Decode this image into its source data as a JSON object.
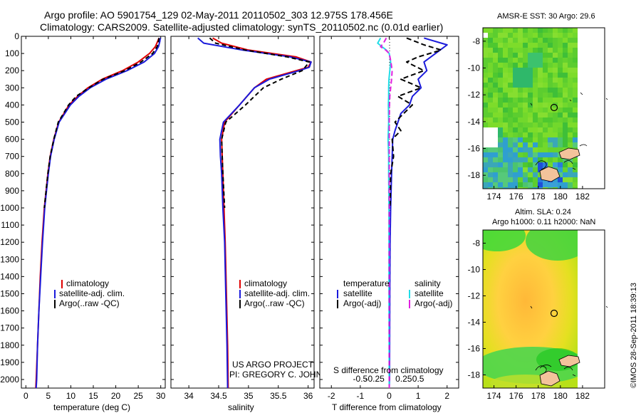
{
  "title": {
    "line1": "Argo profile: AO 5901754_129 02-May-2011 20110502_303 12.975S 178.456E",
    "line2": "Climatology: CARS2009. Satellite-adjusted climatology: synTS_20110502.nc (0.01d earlier)"
  },
  "credits": {
    "project": "US ARGO PROJECT",
    "pi": "PI: GREGORY C. JOHNSON",
    "imos": "©IMOS 28-Sep-2011 18:39:13"
  },
  "colors": {
    "climatology": "#e00000",
    "satellite": "#1a1adb",
    "argo": "#000000",
    "sat_salinity": "#22dde8",
    "argo_salinity": "#e020e0",
    "land": "#f3c39b"
  },
  "chart_data": [
    {
      "id": "temperature",
      "type": "line",
      "xlabel": "temperature (deg C)",
      "xlim": [
        -1,
        31
      ],
      "xticks": [
        0,
        5,
        10,
        15,
        20,
        25,
        30
      ],
      "ylim": [
        2050,
        0
      ],
      "yticks": [
        0,
        100,
        200,
        300,
        400,
        500,
        600,
        700,
        800,
        900,
        1000,
        1100,
        1200,
        1300,
        1400,
        1500,
        1600,
        1700,
        1800,
        1900,
        2000
      ],
      "legend": [
        "climatology",
        "satellite-adj. clim.",
        "Argo(..raw -QC)"
      ],
      "series": [
        {
          "name": "climatology",
          "color_key": "climatology",
          "dash": "",
          "depth": [
            10,
            30,
            60,
            100,
            150,
            200,
            250,
            300,
            350,
            400,
            500,
            600,
            700,
            800,
            900,
            1000,
            1200,
            1400,
            1600,
            1800,
            2000,
            2050
          ],
          "values": [
            29.6,
            29.3,
            28.8,
            27.5,
            25.0,
            21.5,
            17.0,
            13.8,
            11.5,
            9.6,
            7.3,
            6.2,
            5.4,
            4.9,
            4.5,
            4.1,
            3.6,
            3.2,
            2.9,
            2.6,
            2.3,
            2.2
          ]
        },
        {
          "name": "satellite-adj. clim.",
          "color_key": "satellite",
          "dash": "",
          "depth": [
            10,
            30,
            60,
            100,
            150,
            200,
            250,
            300,
            350,
            400,
            500,
            600,
            700,
            800,
            900,
            1000,
            1200,
            1400,
            1600,
            1800,
            2000,
            2050
          ],
          "values": [
            29.9,
            29.8,
            29.5,
            28.6,
            26.3,
            22.5,
            17.8,
            14.3,
            11.8,
            9.9,
            7.4,
            6.3,
            5.5,
            5.0,
            4.6,
            4.2,
            3.7,
            3.3,
            2.9,
            2.6,
            2.4,
            2.3
          ]
        },
        {
          "name": "Argo(..raw -QC)",
          "color_key": "argo",
          "dash": "6,4",
          "depth": [
            10,
            30,
            60,
            100,
            150,
            200,
            250,
            300,
            350,
            400,
            500,
            600,
            700,
            800,
            900,
            1000
          ],
          "values": [
            29.6,
            29.5,
            29.2,
            28.2,
            25.6,
            22.0,
            17.2,
            14.0,
            11.2,
            9.5,
            7.2,
            6.2,
            5.4,
            4.9,
            4.5,
            4.1
          ]
        }
      ]
    },
    {
      "id": "salinity",
      "type": "line",
      "xlabel": "salinity",
      "xlim": [
        33.7,
        36.1
      ],
      "xticks": [
        34,
        34.5,
        35,
        35.5,
        36
      ],
      "xticklabels": [
        "34",
        "34.5",
        "35",
        "35.5",
        "36"
      ],
      "ylim": [
        2050,
        0
      ],
      "legend": [
        "climatology",
        "satellite-adj. clim.",
        "Argo(..raw -QC)"
      ],
      "series": [
        {
          "name": "climatology",
          "color_key": "climatology",
          "dash": "",
          "depth": [
            10,
            40,
            80,
            120,
            150,
            180,
            200,
            250,
            300,
            400,
            500,
            600,
            700,
            800,
            1000,
            1200,
            1500,
            1800,
            2050
          ],
          "values": [
            34.4,
            34.55,
            35.0,
            35.8,
            36.05,
            36.0,
            35.8,
            35.3,
            35.1,
            34.85,
            34.6,
            34.55,
            34.56,
            34.57,
            34.59,
            34.61,
            34.63,
            34.65,
            34.66
          ]
        },
        {
          "name": "satellite-adj. clim.",
          "color_key": "satellite",
          "dash": "",
          "depth": [
            10,
            40,
            80,
            120,
            150,
            180,
            200,
            250,
            300,
            400,
            500,
            600,
            700,
            800,
            1000,
            1200,
            1500,
            1800,
            2050
          ],
          "values": [
            34.15,
            34.25,
            34.9,
            35.7,
            36.05,
            36.02,
            35.85,
            35.35,
            35.1,
            34.85,
            34.58,
            34.52,
            34.53,
            34.55,
            34.57,
            34.6,
            34.62,
            34.64,
            34.65
          ]
        },
        {
          "name": "Argo(..raw -QC)",
          "color_key": "argo",
          "dash": "6,4",
          "depth": [
            10,
            40,
            80,
            120,
            150,
            180,
            200,
            250,
            300,
            350,
            400,
            500,
            600,
            700,
            800,
            1000
          ],
          "values": [
            34.35,
            34.45,
            34.95,
            35.65,
            36.02,
            35.95,
            35.9,
            35.55,
            35.25,
            35.1,
            34.95,
            34.62,
            34.55,
            34.56,
            34.57,
            34.6
          ]
        }
      ]
    },
    {
      "id": "difference",
      "type": "line",
      "xlabel": "T difference from climatology",
      "xlabel2": "S difference from climatology",
      "xlim": [
        -2.4,
        2.4
      ],
      "xticks": [
        -2,
        -1,
        0,
        1,
        2
      ],
      "xticklabels": [
        "-2",
        "-1",
        "0",
        "1",
        "2"
      ],
      "sticks": [
        -0.5,
        -0.25,
        0.25,
        0.5
      ],
      "sticklabels": [
        "-0.5",
        "-0.25",
        "0.25",
        "0.5"
      ],
      "ylim": [
        2050,
        0
      ],
      "legend_temperature": [
        "temperature",
        "satellite",
        "Argo(-adj)"
      ],
      "legend_salinity": [
        "salinity",
        "satellite",
        "Argo(-adj)"
      ],
      "series": [
        {
          "name": "T satellite",
          "color_key": "satellite",
          "dash": "",
          "depth": [
            10,
            50,
            100,
            150,
            200,
            250,
            300,
            350,
            400,
            450,
            500,
            550,
            600,
            700,
            800,
            1000,
            1200,
            1500,
            2000,
            2050
          ],
          "values": [
            1.2,
            2.0,
            1.6,
            1.2,
            1.3,
            1.0,
            1.1,
            0.8,
            0.7,
            0.4,
            0.3,
            0.2,
            0.12,
            0.1,
            0.08,
            0.05,
            0.03,
            0.02,
            0.01,
            0.0
          ]
        },
        {
          "name": "T Argo(-adj)",
          "color_key": "argo",
          "dash": "7,4",
          "depth": [
            10,
            50,
            80,
            120,
            150,
            200,
            250,
            300,
            350,
            400,
            450,
            500,
            550,
            600,
            700,
            800,
            1000
          ],
          "values": [
            0.6,
            1.2,
            1.8,
            1.0,
            0.6,
            1.2,
            0.4,
            1.1,
            0.3,
            0.8,
            0.5,
            0.2,
            0.4,
            0.1,
            0.15,
            0.05,
            0.03
          ]
        },
        {
          "name": "S satellite",
          "color_key": "sat_salinity",
          "dash": "",
          "depth": [
            10,
            40,
            60,
            80,
            100,
            150,
            200,
            250,
            300,
            350,
            400,
            500,
            600,
            700,
            800,
            1000,
            1500,
            2050
          ],
          "values": [
            -0.3,
            -0.4,
            -0.25,
            -0.1,
            0.0,
            0.05,
            0.02,
            -0.01,
            -0.02,
            -0.02,
            -0.03,
            -0.02,
            -0.04,
            -0.02,
            -0.02,
            -0.01,
            -0.01,
            0.0
          ]
        },
        {
          "name": "S Argo(-adj)",
          "color_key": "argo_salinity",
          "dash": "7,4",
          "depth": [
            10,
            40,
            60,
            80,
            100,
            150,
            200,
            250,
            300,
            350,
            400,
            500,
            600,
            700,
            800,
            1000,
            1500,
            2050
          ],
          "values": [
            -0.1,
            -0.2,
            -0.3,
            -0.12,
            0.0,
            0.06,
            0.1,
            0.08,
            0.05,
            0.02,
            0.01,
            0.0,
            0.0,
            0.0,
            0.0,
            0.0,
            0.0,
            0.0
          ]
        }
      ]
    },
    {
      "id": "sst_map",
      "type": "heatmap",
      "title": "AMSR-E SST: 30 Argo: 29.6",
      "xticks": [
        174,
        176,
        178,
        180,
        182
      ],
      "yticks": [
        -8,
        -10,
        -12,
        -14,
        -16,
        -18
      ],
      "xlim": [
        173,
        184
      ],
      "ylim": [
        -19,
        -7
      ]
    },
    {
      "id": "sla_map",
      "type": "heatmap",
      "title_line1": "Altim. SLA: 0.24",
      "title_line2": "Argo h1000: 0.11 h2000: NaN",
      "xticks": [
        174,
        176,
        178,
        180,
        182
      ],
      "yticks": [
        -8,
        -10,
        -12,
        -14,
        -16,
        -18
      ],
      "xlim": [
        173,
        184
      ],
      "ylim": [
        -19,
        -7
      ]
    }
  ]
}
